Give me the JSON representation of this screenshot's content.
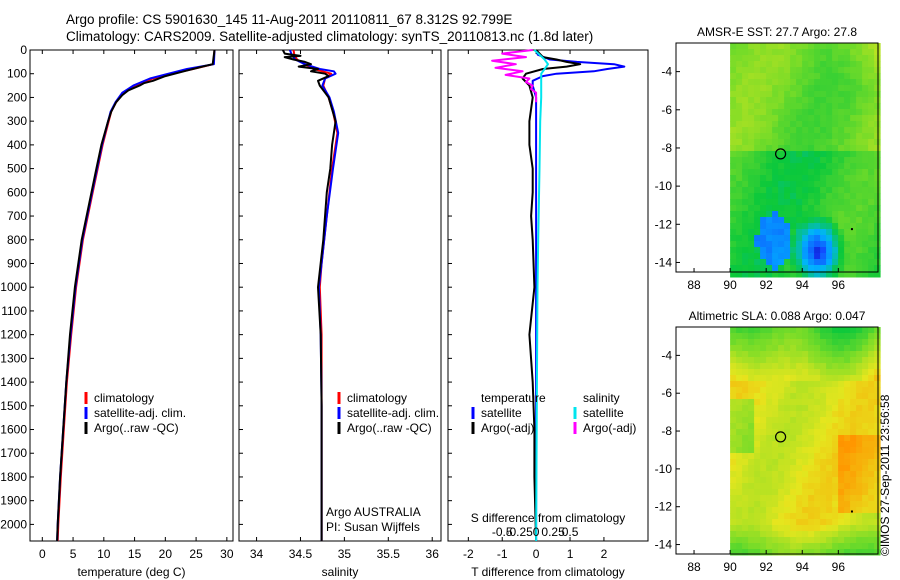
{
  "title": {
    "line1": "Argo profile: CS 5901630_145 11-Aug-2011 20110811_67 8.312S 92.799E",
    "line2": "Climatology: CARS2009. Satellite-adjusted climatology: synTS_20110813.nc (1.8d later)"
  },
  "footer_stamp": "©IMOS 27-Sep-2011 23:56:58",
  "colors": {
    "climatology": "#ff0000",
    "satellite": "#0000ff",
    "argo": "#000000",
    "salinity_satellite": "#00e5ee",
    "salinity_argo": "#ff00ff"
  },
  "chart_data": [
    {
      "type": "line",
      "id": "temperature",
      "xlabel": "temperature (deg C)",
      "xlim": [
        -2,
        31
      ],
      "ylim": [
        2070,
        0
      ],
      "xticks": [
        0,
        5,
        10,
        15,
        20,
        25,
        30
      ],
      "yticks": [
        0,
        100,
        200,
        300,
        400,
        500,
        600,
        700,
        800,
        900,
        1000,
        1100,
        1200,
        1300,
        1400,
        1500,
        1600,
        1700,
        1800,
        1900,
        2000
      ],
      "legend": [
        "climatology",
        "satellite-adj. clim.",
        "Argo(..raw -QC)"
      ],
      "legend_position": "center",
      "series": [
        {
          "name": "climatology",
          "color": "#ff0000",
          "depth": [
            0,
            60,
            80,
            100,
            120,
            150,
            180,
            220,
            260,
            300,
            400,
            500,
            600,
            800,
            1000,
            1200,
            1400,
            1600,
            1800,
            2000,
            2070
          ],
          "values": [
            28.0,
            27.8,
            24.5,
            21.0,
            18.0,
            15.0,
            13.2,
            12.0,
            11.2,
            10.8,
            9.8,
            9.0,
            8.2,
            6.6,
            5.5,
            4.7,
            4.0,
            3.5,
            3.0,
            2.6,
            2.5
          ]
        },
        {
          "name": "satellite-adj. clim.",
          "color": "#0000ff",
          "depth": [
            0,
            60,
            80,
            100,
            120,
            150,
            180,
            220,
            260,
            300,
            400,
            500,
            600,
            800,
            1000,
            1200,
            1400,
            1600,
            1800,
            2000,
            2070
          ],
          "values": [
            28.0,
            27.9,
            23.5,
            20.5,
            17.5,
            14.8,
            13.0,
            11.9,
            11.1,
            10.7,
            9.7,
            8.9,
            8.1,
            6.5,
            5.4,
            4.6,
            3.9,
            3.4,
            2.9,
            2.5,
            2.4
          ]
        },
        {
          "name": "Argo(..raw -QC)",
          "color": "#000000",
          "depth": [
            0,
            60,
            70,
            90,
            110,
            130,
            140,
            150,
            170,
            190,
            220,
            260,
            300,
            400,
            500,
            600,
            800,
            1000,
            1200,
            1400,
            1600,
            1800,
            2000,
            2070
          ],
          "values": [
            28.0,
            27.7,
            26.0,
            23.0,
            20.0,
            18.0,
            16.5,
            15.8,
            14.0,
            13.0,
            12.0,
            11.2,
            10.7,
            9.6,
            8.8,
            8.0,
            6.4,
            5.3,
            4.5,
            3.9,
            3.4,
            2.9,
            2.5,
            2.4
          ]
        }
      ]
    },
    {
      "type": "line",
      "id": "salinity",
      "xlabel": "salinity",
      "xlim": [
        33.8,
        36.1
      ],
      "ylim": [
        2070,
        0
      ],
      "xticks": [
        34,
        34.5,
        35,
        35.5,
        36
      ],
      "xticklabels": [
        "34",
        "34.5",
        "35",
        "35.5",
        "36"
      ],
      "legend": [
        "climatology",
        "satellite-adj. clim.",
        "Argo(..raw -QC)"
      ],
      "legend_position": "center-right",
      "annotation": [
        "Argo AUSTRALIA",
        "PI: Susan Wijffels"
      ],
      "series": [
        {
          "name": "climatology",
          "color": "#ff0000",
          "depth": [
            0,
            20,
            40,
            60,
            80,
            100,
            120,
            150,
            200,
            260,
            350,
            500,
            700,
            900,
            1000,
            1200,
            1500,
            1800,
            2070
          ],
          "values": [
            34.42,
            34.43,
            34.46,
            34.55,
            34.65,
            34.85,
            34.78,
            34.76,
            34.82,
            34.87,
            34.92,
            34.86,
            34.8,
            34.74,
            34.72,
            34.74,
            34.74,
            34.74,
            34.74
          ]
        },
        {
          "name": "satellite-adj. clim.",
          "color": "#0000ff",
          "depth": [
            0,
            20,
            40,
            60,
            80,
            90,
            100,
            120,
            150,
            200,
            260,
            350,
            500,
            700,
            900,
            1000,
            1200,
            1500,
            1800,
            2070
          ],
          "values": [
            34.38,
            34.4,
            34.44,
            34.55,
            34.72,
            34.88,
            34.9,
            34.78,
            34.75,
            34.83,
            34.88,
            34.93,
            34.87,
            34.8,
            34.74,
            34.71,
            34.73,
            34.74,
            34.74,
            34.74
          ]
        },
        {
          "name": "Argo(..raw -QC)",
          "color": "#000000",
          "depth": [
            0,
            15,
            25,
            30,
            40,
            50,
            60,
            70,
            80,
            90,
            100,
            110,
            130,
            150,
            180,
            200,
            250,
            300,
            400,
            500,
            600,
            800,
            1000,
            1200,
            1500,
            1800,
            2070
          ],
          "values": [
            34.3,
            34.32,
            34.5,
            34.32,
            34.42,
            34.55,
            34.62,
            34.48,
            34.7,
            34.62,
            34.78,
            34.82,
            34.7,
            34.72,
            34.78,
            34.82,
            34.86,
            34.9,
            34.86,
            34.84,
            34.8,
            34.76,
            34.7,
            34.73,
            34.74,
            34.74,
            34.74
          ]
        }
      ]
    },
    {
      "type": "line",
      "id": "difference",
      "xlabel": "T difference from climatology",
      "xlabel_top": "S difference from climatology",
      "xlim": [
        -2.6,
        3.3
      ],
      "ylim": [
        2070,
        0
      ],
      "xticks": [
        -2,
        -1,
        0,
        1,
        2
      ],
      "xticks_s": [
        -1,
        -0.5,
        0,
        0.5,
        1.0
      ],
      "xticklabels_s": [
        "-0.5",
        "-0.25",
        "0",
        "0.25",
        "0.5"
      ],
      "legend_temperature": [
        "temperature",
        "satellite",
        "Argo(-adj)"
      ],
      "legend_salinity": [
        "salinity",
        "satellite",
        "Argo(-adj)"
      ],
      "series": [
        {
          "name": "temperature satellite",
          "color": "#0000ff",
          "depth": [
            0,
            20,
            40,
            50,
            60,
            70,
            80,
            90,
            100,
            110,
            130,
            150,
            200,
            300,
            500,
            1000,
            2070
          ],
          "values": [
            0.0,
            0.05,
            0.4,
            1.2,
            2.3,
            2.6,
            2.1,
            1.7,
            0.6,
            0.2,
            -0.1,
            -0.1,
            0.0,
            0.0,
            0.0,
            0.0,
            0.0
          ]
        },
        {
          "name": "temperature Argo(-adj)",
          "color": "#000000",
          "depth": [
            0,
            30,
            40,
            50,
            60,
            70,
            80,
            100,
            120,
            150,
            200,
            300,
            400,
            500,
            600,
            700,
            800,
            1000,
            1200,
            1400,
            1600,
            1800,
            2070
          ],
          "values": [
            0.0,
            0.2,
            0.6,
            0.9,
            1.3,
            0.9,
            0.2,
            -0.3,
            -0.4,
            -0.2,
            -0.1,
            -0.2,
            -0.2,
            -0.1,
            -0.1,
            -0.15,
            -0.1,
            -0.05,
            -0.2,
            -0.1,
            -0.05,
            -0.05,
            0.0
          ]
        },
        {
          "name": "salinity satellite",
          "color": "#00e5ee",
          "depth": [
            0,
            20,
            40,
            60,
            80,
            100,
            150,
            200,
            300,
            500,
            800,
            1000,
            1500,
            2070
          ],
          "values": [
            -0.05,
            0.1,
            0.25,
            0.35,
            0.25,
            0.15,
            0.15,
            0.15,
            0.12,
            0.1,
            0.06,
            0.04,
            0.02,
            0.0
          ]
        },
        {
          "name": "salinity Argo(-adj)",
          "color": "#ff00ff",
          "depth": [
            0,
            15,
            30,
            45,
            60,
            75,
            90,
            105,
            120,
            135,
            150,
            165,
            180,
            200,
            220
          ],
          "values": [
            -0.1,
            -1.0,
            -0.3,
            -1.3,
            -0.6,
            -1.2,
            -0.4,
            -0.9,
            -0.2,
            -0.3,
            -0.1,
            -0.15,
            0.0,
            0.0,
            0.0
          ]
        }
      ]
    },
    {
      "type": "heatmap",
      "id": "sst-map",
      "title": "AMSR-E SST: 27.7  Argo: 27.8",
      "xlim": [
        87,
        98.2
      ],
      "ylim": [
        -14.5,
        -2.5
      ],
      "xticks": [
        88,
        90,
        92,
        94,
        96
      ],
      "yticks": [
        -4,
        -6,
        -8,
        -10,
        -12,
        -14
      ],
      "data_extent_x": [
        90,
        98.2
      ],
      "argo_position": {
        "lon": 92.8,
        "lat": -8.31
      }
    },
    {
      "type": "heatmap",
      "id": "sla-map",
      "title": "Altimetric SLA: 0.088  Argo: 0.047",
      "xlim": [
        87,
        98.2
      ],
      "ylim": [
        -14.5,
        -2.5
      ],
      "xticks": [
        88,
        90,
        92,
        94,
        96
      ],
      "yticks": [
        -4,
        -6,
        -8,
        -10,
        -12,
        -14
      ],
      "data_extent_x": [
        90,
        98.2
      ],
      "argo_position": {
        "lon": 92.8,
        "lat": -8.31
      }
    }
  ]
}
